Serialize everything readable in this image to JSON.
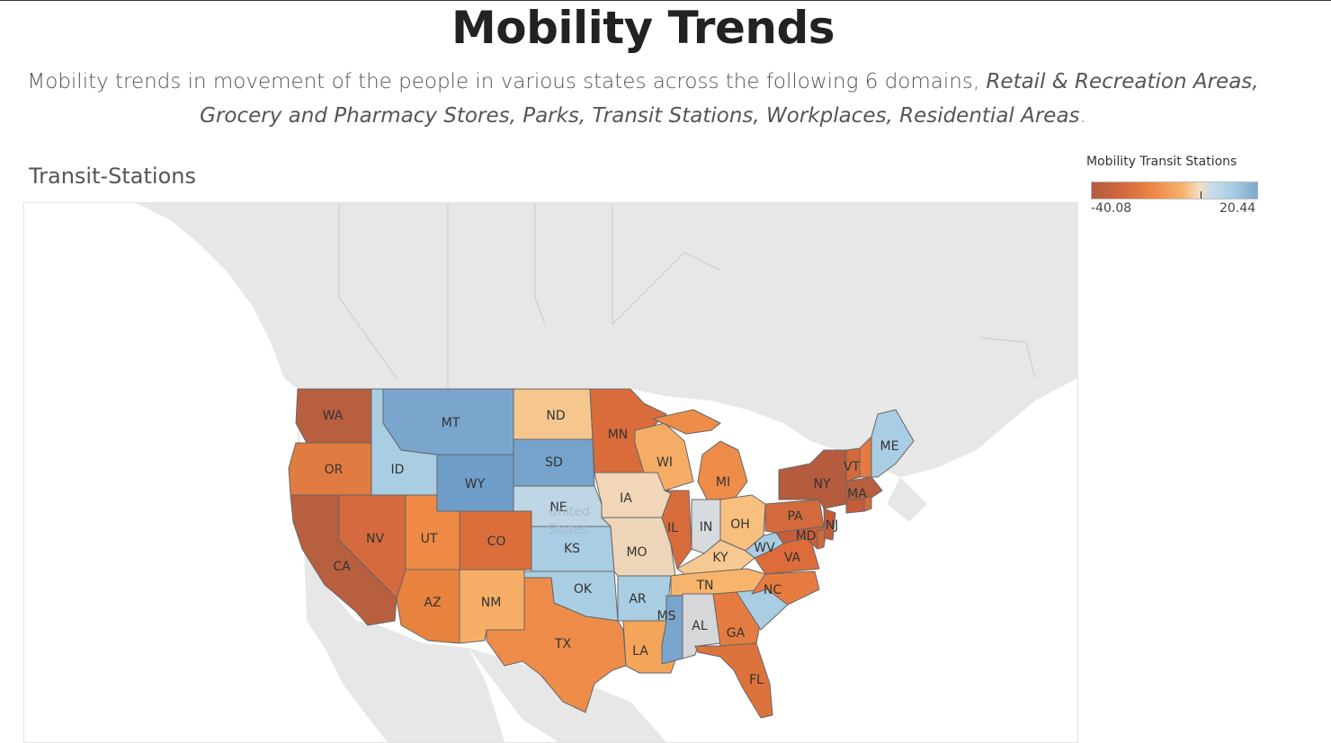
{
  "header": {
    "title": "Mobility Trends",
    "subtitle_plain": "Mobility trends in movement of the people in various states across the following 6 domains, ",
    "subtitle_italic": "Retail & Recreation Areas, Grocery and Pharmacy Stores, Parks, Transit Stations, Workplaces, Residential Areas",
    "subtitle_end": "."
  },
  "panel": {
    "title": "Transit-Stations"
  },
  "legend": {
    "title": "Mobility Transit Stations",
    "min_label": "-40.08",
    "max_label": "20.44"
  },
  "map": {
    "country_label_1": "United",
    "country_label_2": "States"
  },
  "chart_data": {
    "type": "choropleth",
    "title": "Transit-Stations",
    "measure": "Mobility Transit Stations",
    "range": [
      -40.08,
      20.44
    ],
    "states": [
      {
        "abbr": "WA",
        "value": -36
      },
      {
        "abbr": "OR",
        "value": -28
      },
      {
        "abbr": "CA",
        "value": -38
      },
      {
        "abbr": "ID",
        "value": 8
      },
      {
        "abbr": "NV",
        "value": -32
      },
      {
        "abbr": "MT",
        "value": 19
      },
      {
        "abbr": "WY",
        "value": 20
      },
      {
        "abbr": "UT",
        "value": -25
      },
      {
        "abbr": "AZ",
        "value": -27
      },
      {
        "abbr": "CO",
        "value": -33
      },
      {
        "abbr": "NM",
        "value": -15
      },
      {
        "abbr": "ND",
        "value": -12
      },
      {
        "abbr": "SD",
        "value": 18
      },
      {
        "abbr": "NE",
        "value": 6
      },
      {
        "abbr": "KS",
        "value": 7
      },
      {
        "abbr": "OK",
        "value": 7
      },
      {
        "abbr": "TX",
        "value": -26
      },
      {
        "abbr": "MN",
        "value": -33
      },
      {
        "abbr": "IA",
        "value": -6
      },
      {
        "abbr": "MO",
        "value": -7
      },
      {
        "abbr": "AR",
        "value": 8
      },
      {
        "abbr": "LA",
        "value": -20
      },
      {
        "abbr": "WI",
        "value": -18
      },
      {
        "abbr": "IL",
        "value": -34
      },
      {
        "abbr": "MI",
        "value": -26
      },
      {
        "abbr": "IN",
        "value": 0
      },
      {
        "abbr": "OH",
        "value": -16
      },
      {
        "abbr": "KY",
        "value": -11
      },
      {
        "abbr": "TN",
        "value": -17
      },
      {
        "abbr": "MS",
        "value": 18
      },
      {
        "abbr": "AL",
        "value": 0
      },
      {
        "abbr": "GA",
        "value": -28
      },
      {
        "abbr": "FL",
        "value": -33
      },
      {
        "abbr": "SC",
        "value": 8
      },
      {
        "abbr": "NC",
        "value": -30
      },
      {
        "abbr": "VA",
        "value": -31
      },
      {
        "abbr": "WV",
        "value": 9
      },
      {
        "abbr": "MD",
        "value": -36
      },
      {
        "abbr": "PA",
        "value": -34
      },
      {
        "abbr": "NJ",
        "value": -37
      },
      {
        "abbr": "NY",
        "value": -40
      },
      {
        "abbr": "VT",
        "value": -33
      },
      {
        "abbr": "NH",
        "value": -29
      },
      {
        "abbr": "MA",
        "value": -38
      },
      {
        "abbr": "CT",
        "value": -36
      },
      {
        "abbr": "RI",
        "value": -34
      },
      {
        "abbr": "DE",
        "value": -33
      },
      {
        "abbr": "ME",
        "value": 9
      }
    ]
  }
}
